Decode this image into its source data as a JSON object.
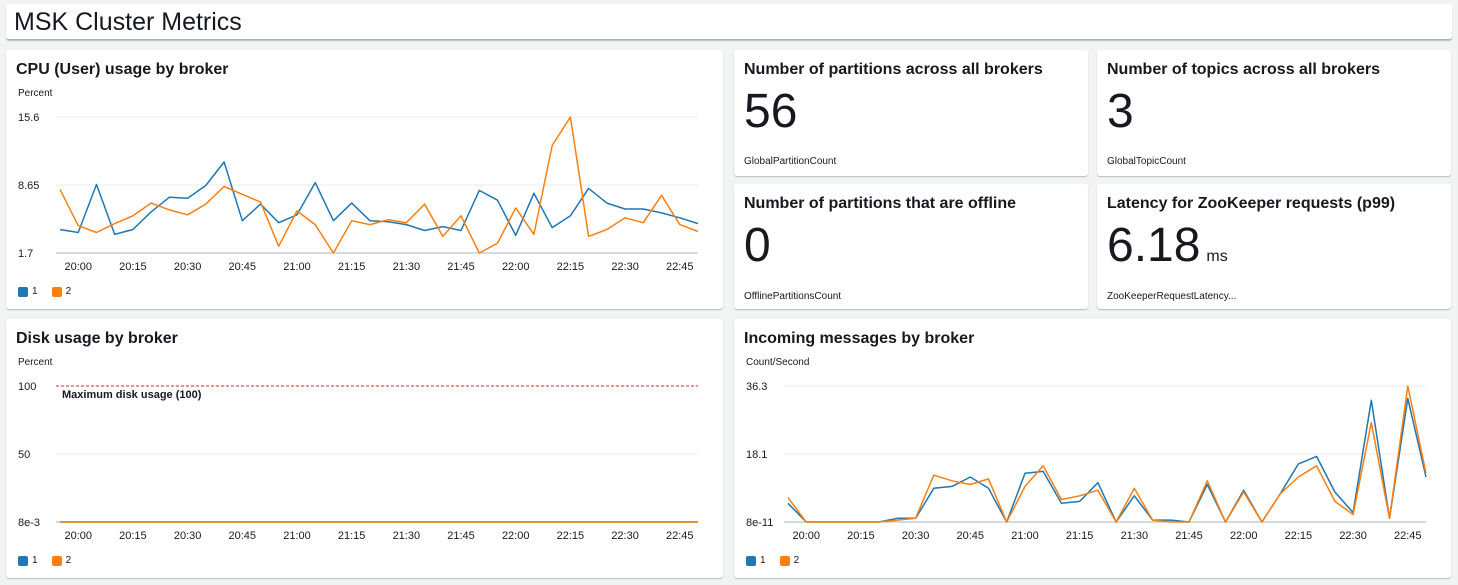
{
  "dashboard": {
    "title": "MSK Cluster Metrics"
  },
  "widgets": {
    "cpu": {
      "title": "CPU (User) usage by broker",
      "unit": "Percent"
    },
    "partitions": {
      "title": "Number of partitions across all brokers",
      "value": "56",
      "metric": "GlobalPartitionCount"
    },
    "topics": {
      "title": "Number of topics across all brokers",
      "value": "3",
      "metric": "GlobalTopicCount"
    },
    "offline": {
      "title": "Number of partitions that are offline",
      "value": "0",
      "metric": "OfflinePartitionsCount"
    },
    "zk": {
      "title": "Latency for ZooKeeper requests (p99)",
      "value": "6.18",
      "unit": "ms",
      "metric": "ZooKeeperRequestLatency..."
    },
    "disk": {
      "title": "Disk usage by broker",
      "unit": "Percent",
      "annotation": "Maximum disk usage (100)"
    },
    "incoming": {
      "title": "Incoming messages by broker",
      "unit": "Count/Second"
    }
  },
  "legend": {
    "series1": "1",
    "series2": "2"
  },
  "colors": {
    "series1": "#1f77b4",
    "series2": "#ff7f0e",
    "threshold": "#d62728"
  },
  "chart_data": [
    {
      "id": "cpu",
      "type": "line",
      "x": [
        "19:55",
        "20:00",
        "20:05",
        "20:10",
        "20:15",
        "20:20",
        "20:25",
        "20:30",
        "20:35",
        "20:40",
        "20:45",
        "20:50",
        "20:55",
        "21:00",
        "21:05",
        "21:10",
        "21:15",
        "21:20",
        "21:25",
        "21:30",
        "21:35",
        "21:40",
        "21:45",
        "21:50",
        "21:55",
        "22:00",
        "22:05",
        "22:10",
        "22:15",
        "22:20",
        "22:25",
        "22:30",
        "22:35",
        "22:40",
        "22:45",
        "22:50"
      ],
      "xticks": [
        "20:00",
        "20:15",
        "20:30",
        "20:45",
        "21:00",
        "21:15",
        "21:30",
        "21:45",
        "22:00",
        "22:15",
        "22:30",
        "22:45"
      ],
      "yticks": [
        "1.7",
        "8.65",
        "15.6"
      ],
      "ylim": [
        1.7,
        15.6
      ],
      "series": [
        {
          "name": "1",
          "values": [
            4.1,
            3.8,
            8.7,
            3.6,
            4.1,
            5.9,
            7.4,
            7.3,
            8.6,
            11.0,
            5.0,
            6.7,
            4.8,
            5.6,
            8.9,
            5.0,
            6.8,
            5.0,
            4.9,
            4.6,
            4.0,
            4.4,
            4.0,
            8.1,
            7.1,
            3.5,
            7.8,
            4.3,
            5.5,
            8.3,
            6.8,
            6.2,
            6.2,
            5.8,
            5.3,
            4.7
          ]
        },
        {
          "name": "2",
          "values": [
            8.2,
            4.5,
            3.8,
            4.7,
            5.5,
            6.8,
            6.1,
            5.6,
            6.7,
            8.5,
            7.7,
            6.9,
            2.4,
            6.0,
            4.6,
            1.7,
            5.0,
            4.6,
            5.1,
            4.8,
            6.7,
            3.4,
            5.5,
            1.7,
            2.7,
            6.3,
            3.6,
            12.7,
            15.6,
            3.4,
            4.1,
            5.3,
            4.8,
            7.6,
            4.6,
            3.9
          ]
        }
      ]
    },
    {
      "id": "disk",
      "type": "line",
      "x": [
        "19:55",
        "20:00",
        "20:05",
        "20:10",
        "20:15",
        "20:20",
        "20:25",
        "20:30",
        "20:35",
        "20:40",
        "20:45",
        "20:50",
        "20:55",
        "21:00",
        "21:05",
        "21:10",
        "21:15",
        "21:20",
        "21:25",
        "21:30",
        "21:35",
        "21:40",
        "21:45",
        "21:50",
        "21:55",
        "22:00",
        "22:05",
        "22:10",
        "22:15",
        "22:20",
        "22:25",
        "22:30",
        "22:35",
        "22:40",
        "22:45",
        "22:50"
      ],
      "xticks": [
        "20:00",
        "20:15",
        "20:30",
        "20:45",
        "21:00",
        "21:15",
        "21:30",
        "21:45",
        "22:00",
        "22:15",
        "22:30",
        "22:45"
      ],
      "yticks": [
        "8e-3",
        "50",
        "100"
      ],
      "ylim": [
        0.008,
        100
      ],
      "threshold": 100,
      "series": [
        {
          "name": "1",
          "values": [
            0.008,
            0.008,
            0.008,
            0.008,
            0.008,
            0.008,
            0.008,
            0.008,
            0.008,
            0.008,
            0.008,
            0.008,
            0.008,
            0.008,
            0.008,
            0.008,
            0.008,
            0.008,
            0.008,
            0.008,
            0.008,
            0.008,
            0.008,
            0.008,
            0.008,
            0.008,
            0.008,
            0.008,
            0.008,
            0.008,
            0.008,
            0.008,
            0.008,
            0.008,
            0.008,
            0.008
          ]
        },
        {
          "name": "2",
          "values": [
            0.008,
            0.008,
            0.008,
            0.008,
            0.008,
            0.008,
            0.008,
            0.008,
            0.008,
            0.008,
            0.008,
            0.008,
            0.008,
            0.008,
            0.008,
            0.008,
            0.008,
            0.008,
            0.008,
            0.008,
            0.008,
            0.008,
            0.008,
            0.008,
            0.008,
            0.008,
            0.008,
            0.008,
            0.008,
            0.008,
            0.008,
            0.008,
            0.008,
            0.008,
            0.008,
            0.008
          ]
        }
      ]
    },
    {
      "id": "incoming",
      "type": "line",
      "x": [
        "19:55",
        "20:00",
        "20:05",
        "20:10",
        "20:15",
        "20:20",
        "20:25",
        "20:30",
        "20:35",
        "20:40",
        "20:45",
        "20:50",
        "20:55",
        "21:00",
        "21:05",
        "21:10",
        "21:15",
        "21:20",
        "21:25",
        "21:30",
        "21:35",
        "21:40",
        "21:45",
        "21:50",
        "21:55",
        "22:00",
        "22:05",
        "22:10",
        "22:15",
        "22:20",
        "22:25",
        "22:30",
        "22:35",
        "22:40",
        "22:45",
        "22:50"
      ],
      "xticks": [
        "20:00",
        "20:15",
        "20:30",
        "20:45",
        "21:00",
        "21:15",
        "21:30",
        "21:45",
        "22:00",
        "22:15",
        "22:30",
        "22:45"
      ],
      "yticks": [
        "8e-11",
        "18.1",
        "36.3"
      ],
      "ylim": [
        0,
        36.3
      ],
      "series": [
        {
          "name": "1",
          "values": [
            5.0,
            0,
            0,
            0,
            0,
            0,
            1.0,
            1.0,
            9.0,
            9.5,
            12.0,
            9.0,
            0,
            13.0,
            13.5,
            5.0,
            5.5,
            10.5,
            0,
            7.0,
            0.5,
            0.5,
            0,
            10.0,
            0,
            8.5,
            0,
            7.5,
            15.5,
            17.5,
            8.0,
            2.5,
            32.5,
            1.0,
            33.0,
            12.0
          ]
        },
        {
          "name": "2",
          "values": [
            6.5,
            0,
            0,
            0,
            0,
            0,
            0.5,
            1.0,
            12.5,
            11.0,
            10.0,
            11.5,
            0,
            9.5,
            15.0,
            6.0,
            7.0,
            8.5,
            0,
            9.0,
            0.5,
            0,
            0,
            11.0,
            0,
            8.0,
            0,
            7.5,
            12.0,
            15.0,
            5.5,
            2.0,
            26.5,
            1.0,
            36.3,
            13.0
          ]
        }
      ]
    }
  ]
}
